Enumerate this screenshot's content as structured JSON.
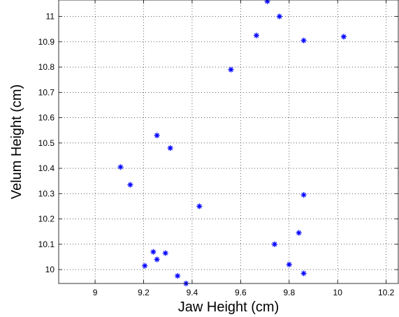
{
  "chart_data": {
    "type": "scatter",
    "title": "",
    "xlabel": "Jaw Height (cm)",
    "ylabel": "Velum Height (cm)",
    "xlim": [
      8.85,
      10.25
    ],
    "ylim": [
      9.945,
      11.065
    ],
    "x_ticks": [
      "9",
      "9.2",
      "9.4",
      "9.6",
      "9.8",
      "10",
      "10.2"
    ],
    "y_ticks": [
      "10",
      "10.1",
      "10.2",
      "10.3",
      "10.4",
      "10.5",
      "10.6",
      "10.7",
      "10.8",
      "10.9",
      "11"
    ],
    "grid": true,
    "marker": "asterisk",
    "color": "#0000ff",
    "series": [
      {
        "points": [
          [
            9.71,
            11.06
          ],
          [
            9.76,
            11.0
          ],
          [
            9.665,
            10.925
          ],
          [
            9.86,
            10.905
          ],
          [
            10.025,
            10.92
          ],
          [
            9.56,
            10.79
          ],
          [
            9.255,
            10.53
          ],
          [
            9.31,
            10.48
          ],
          [
            9.105,
            10.405
          ],
          [
            9.145,
            10.335
          ],
          [
            9.86,
            10.295
          ],
          [
            9.43,
            10.25
          ],
          [
            9.84,
            10.145
          ],
          [
            9.74,
            10.1
          ],
          [
            9.24,
            10.07
          ],
          [
            9.29,
            10.065
          ],
          [
            9.255,
            10.04
          ],
          [
            9.205,
            10.015
          ],
          [
            9.8,
            10.02
          ],
          [
            9.86,
            9.985
          ],
          [
            9.34,
            9.975
          ],
          [
            9.375,
            9.945
          ]
        ]
      }
    ]
  }
}
